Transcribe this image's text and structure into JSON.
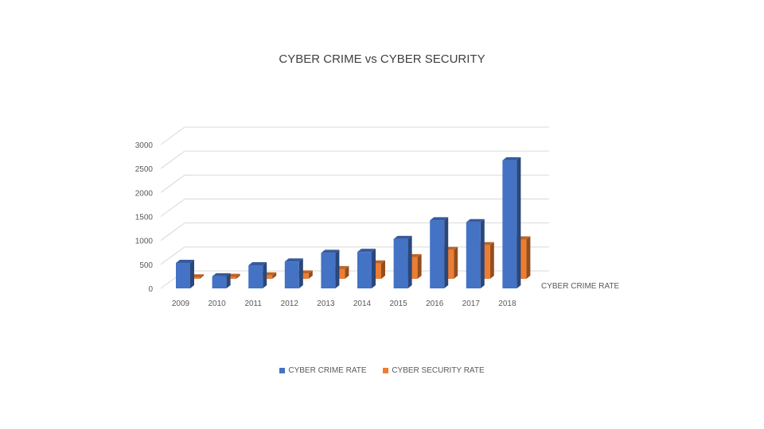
{
  "chart_data": {
    "type": "bar",
    "title": "CYBER CRIME vs CYBER SECURITY",
    "categories": [
      "2009",
      "2010",
      "2011",
      "2012",
      "2013",
      "2014",
      "2015",
      "2016",
      "2017",
      "2018"
    ],
    "series": [
      {
        "name": "CYBER CRIME RATE",
        "color": "#4472C4",
        "values": [
          530,
          250,
          480,
          560,
          740,
          760,
          1030,
          1420,
          1380,
          2670
        ]
      },
      {
        "name": "CYBER SECURITY RATE",
        "color": "#ED7D31",
        "values": [
          30,
          40,
          70,
          110,
          200,
          320,
          450,
          600,
          700,
          820
        ]
      }
    ],
    "y_ticks": [
      "0",
      "500",
      "1000",
      "1500",
      "2000",
      "2500",
      "3000"
    ],
    "ylim": [
      0,
      3000
    ],
    "depth_axis_label": "CYBER CRIME RATE",
    "grid": true,
    "legend_position": "bottom"
  }
}
